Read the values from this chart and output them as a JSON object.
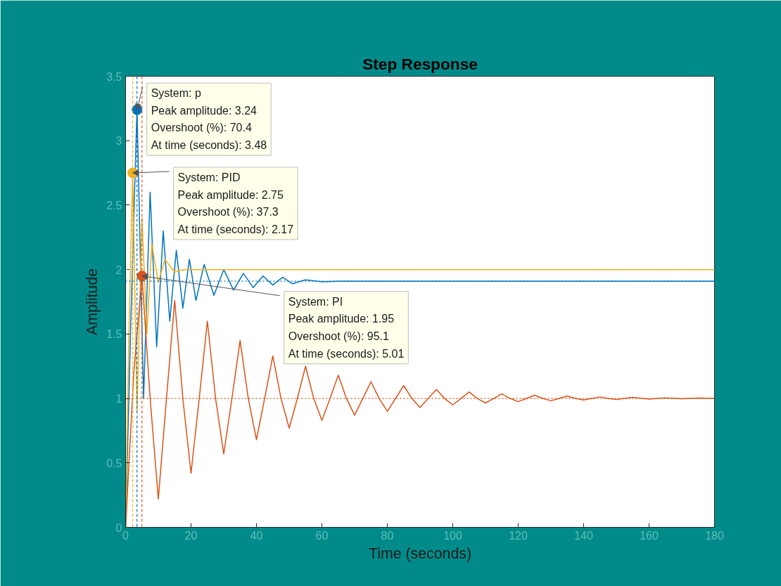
{
  "chart_data": {
    "type": "line",
    "title": "Step Response",
    "xlabel": "Time (seconds)",
    "ylabel": "Amplitude",
    "xlim": [
      0,
      180
    ],
    "ylim": [
      0,
      3.5
    ],
    "xticks": [
      0,
      20,
      40,
      60,
      80,
      100,
      120,
      140,
      160,
      180
    ],
    "yticks": [
      0,
      0.5,
      1,
      1.5,
      2,
      2.5,
      3,
      3.5
    ],
    "grid": false,
    "line_style": "solid",
    "marker": "none",
    "series": [
      {
        "color": "#0072bd",
        "x": [
          0,
          1.5,
          3.48,
          5.5,
          7.5,
          9.5,
          11.5,
          13.5,
          15.5,
          17.5,
          19.5,
          21.5,
          24,
          27,
          30,
          33,
          36,
          39,
          42,
          45,
          48,
          51,
          55,
          60,
          65,
          180
        ],
        "values": [
          0,
          1.5,
          3.24,
          1.0,
          2.6,
          1.4,
          2.3,
          1.6,
          2.15,
          1.7,
          2.08,
          1.76,
          2.04,
          1.8,
          2.0,
          1.84,
          1.97,
          1.86,
          1.95,
          1.88,
          1.94,
          1.89,
          1.92,
          1.905,
          1.91,
          1.91
        ]
      },
      {
        "color": "#edb120",
        "x": [
          0,
          1,
          2.17,
          3.5,
          5,
          6.5,
          8,
          10,
          12,
          15,
          18,
          180
        ],
        "values": [
          0,
          1.5,
          2.75,
          0.9,
          2.4,
          1.5,
          2.2,
          1.9,
          2.08,
          1.98,
          2.0,
          2.0
        ]
      },
      {
        "color": "#d95319",
        "x": [
          0,
          2.5,
          5.01,
          7.5,
          10,
          12.5,
          15,
          17.5,
          20,
          22.5,
          25,
          27.5,
          30,
          32.5,
          35,
          37.5,
          40,
          42.5,
          45,
          47.5,
          50,
          52.5,
          55,
          57.5,
          60,
          62.5,
          65,
          67.5,
          70,
          72.5,
          75,
          77.5,
          80,
          82.5,
          85,
          87.5,
          90,
          92.5,
          95,
          97.5,
          100,
          102.5,
          105,
          107.5,
          110,
          112.5,
          115,
          117.5,
          120,
          122.5,
          125,
          127.5,
          130,
          132.5,
          135,
          137.5,
          140,
          142.5,
          145,
          147.5,
          150,
          155,
          160,
          165,
          170,
          175,
          180
        ],
        "values": [
          0,
          1.2,
          1.95,
          1.0,
          0.22,
          1.0,
          1.76,
          1.0,
          0.42,
          1.0,
          1.6,
          1.0,
          0.57,
          1.0,
          1.45,
          1.0,
          0.68,
          1.0,
          1.33,
          1.0,
          0.77,
          1.0,
          1.25,
          1.0,
          0.83,
          1.0,
          1.18,
          1.0,
          0.87,
          1.0,
          1.13,
          1.0,
          0.9,
          1.0,
          1.1,
          1.0,
          0.93,
          1.0,
          1.07,
          1.0,
          0.95,
          1.0,
          1.05,
          1.0,
          0.965,
          1.0,
          1.035,
          1.0,
          0.975,
          1.0,
          1.025,
          1.0,
          0.982,
          1.0,
          1.018,
          1.0,
          0.988,
          1.0,
          1.012,
          1.0,
          0.992,
          1.008,
          0.995,
          1.005,
          0.997,
          1.003,
          1.0
        ]
      }
    ],
    "ref_lines": [
      {
        "axis": "y",
        "value": 1,
        "color": "#d95319",
        "line_style": "dotted"
      },
      {
        "axis": "y",
        "value": 2,
        "color": "#edb120",
        "line_style": "dotted"
      },
      {
        "axis": "y",
        "value": 1.91,
        "color": "#0072bd",
        "line_style": "dotted"
      },
      {
        "axis": "x",
        "value": 3.48,
        "color": "#0072bd",
        "line_style": "dashed"
      },
      {
        "axis": "x",
        "value": 2.17,
        "color": "#edb120",
        "line_style": "dashed"
      },
      {
        "axis": "x",
        "value": 5.01,
        "color": "#d95319",
        "line_style": "dashed"
      }
    ],
    "annotations": [
      {
        "text": "System: p\nPeak amplitude: 3.24\nOvershoot (%): 70.4\nAt time (seconds): 3.48",
        "x": 3.48,
        "y": 3.24
      },
      {
        "text": "System: PID\nPeak amplitude: 2.75\nOvershoot (%): 37.3\nAt time (seconds): 2.17",
        "x": 2.17,
        "y": 2.75
      },
      {
        "text": "System: PI\nPeak amplitude: 1.95\nOvershoot (%): 95.1\nAt time (seconds): 5.01",
        "x": 5.01,
        "y": 1.95
      }
    ]
  }
}
